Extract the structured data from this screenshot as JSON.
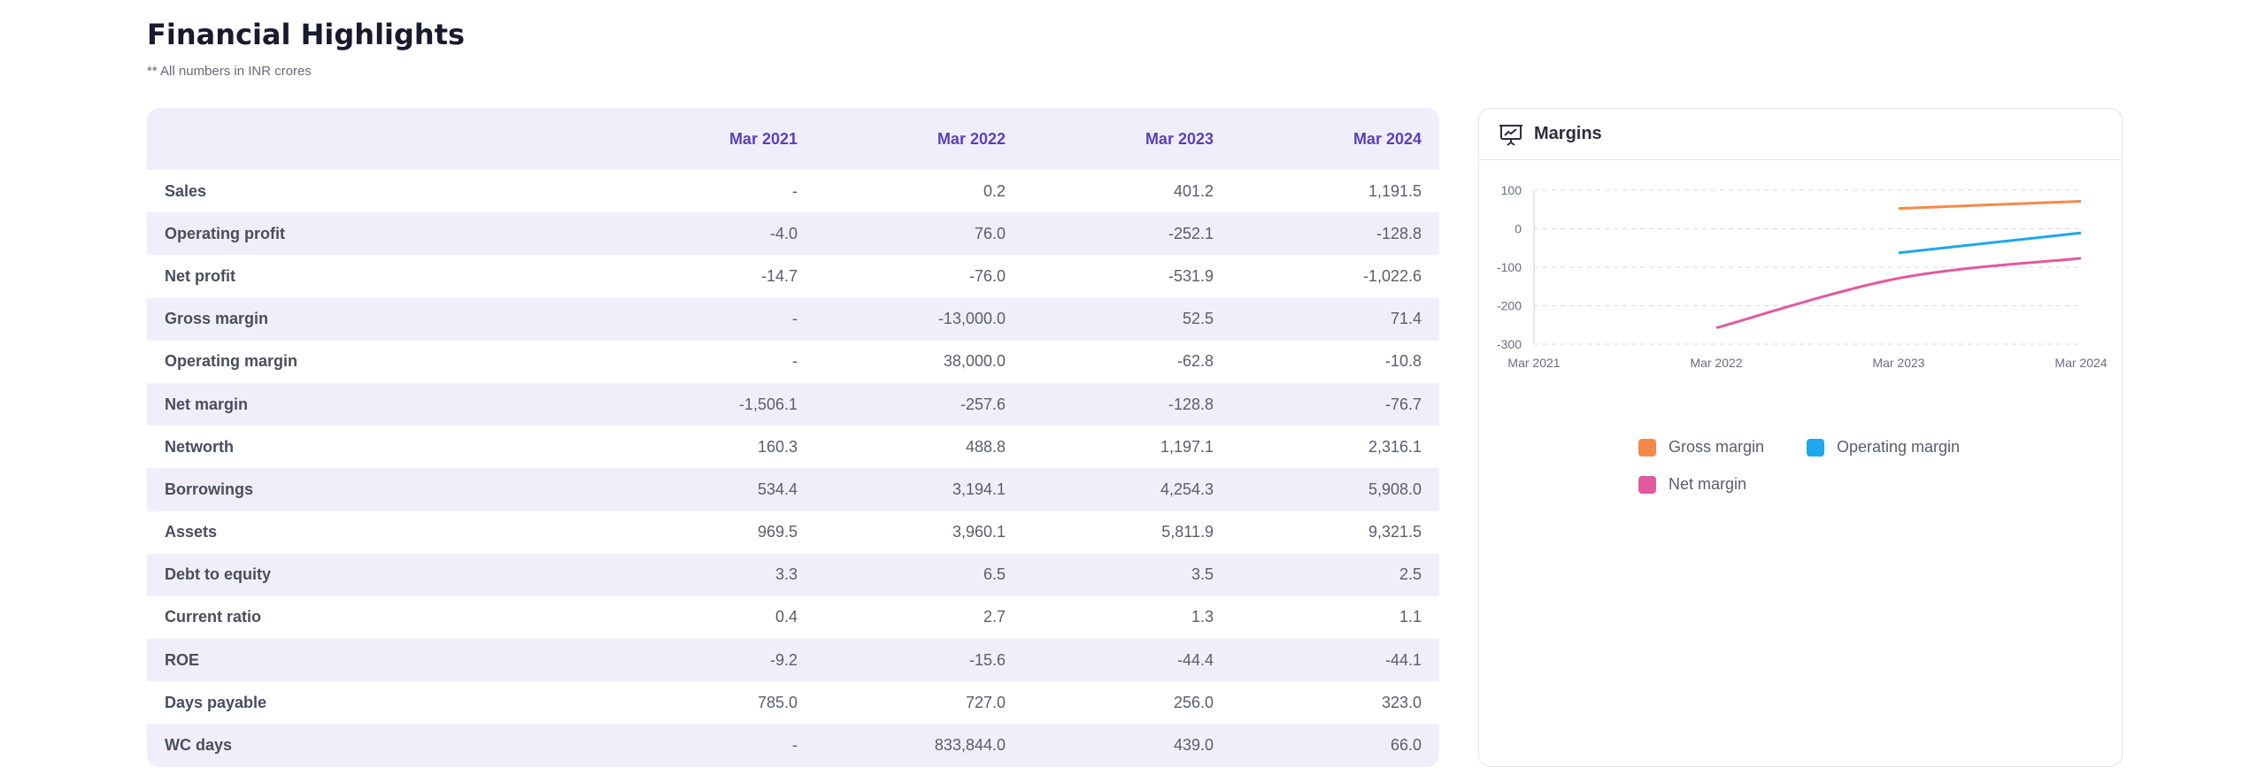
{
  "header": {
    "title": "Financial Highlights",
    "subtitle": "** All numbers in INR crores"
  },
  "table": {
    "columns": [
      "Mar 2021",
      "Mar 2022",
      "Mar 2023",
      "Mar 2024"
    ],
    "rows": [
      {
        "label": "Sales",
        "values": [
          "-",
          "0.2",
          "401.2",
          "1,191.5"
        ]
      },
      {
        "label": "Operating profit",
        "values": [
          "-4.0",
          "76.0",
          "-252.1",
          "-128.8"
        ]
      },
      {
        "label": "Net profit",
        "values": [
          "-14.7",
          "-76.0",
          "-531.9",
          "-1,022.6"
        ]
      },
      {
        "label": "Gross margin",
        "values": [
          "-",
          "-13,000.0",
          "52.5",
          "71.4"
        ]
      },
      {
        "label": "Operating margin",
        "values": [
          "-",
          "38,000.0",
          "-62.8",
          "-10.8"
        ]
      },
      {
        "label": "Net margin",
        "values": [
          "-1,506.1",
          "-257.6",
          "-128.8",
          "-76.7"
        ]
      },
      {
        "label": "Networth",
        "values": [
          "160.3",
          "488.8",
          "1,197.1",
          "2,316.1"
        ]
      },
      {
        "label": "Borrowings",
        "values": [
          "534.4",
          "3,194.1",
          "4,254.3",
          "5,908.0"
        ]
      },
      {
        "label": "Assets",
        "values": [
          "969.5",
          "3,960.1",
          "5,811.9",
          "9,321.5"
        ]
      },
      {
        "label": "Debt to equity",
        "values": [
          "3.3",
          "6.5",
          "3.5",
          "2.5"
        ]
      },
      {
        "label": "Current ratio",
        "values": [
          "0.4",
          "2.7",
          "1.3",
          "1.1"
        ]
      },
      {
        "label": "ROE",
        "values": [
          "-9.2",
          "-15.6",
          "-44.4",
          "-44.1"
        ]
      },
      {
        "label": "Days payable",
        "values": [
          "785.0",
          "727.0",
          "256.0",
          "323.0"
        ]
      },
      {
        "label": "WC days",
        "values": [
          "-",
          "833,844.0",
          "439.0",
          "66.0"
        ]
      }
    ]
  },
  "chart_panel": {
    "title": "Margins",
    "icon": "presentation-chart-icon"
  },
  "chart_data": {
    "type": "line",
    "x": [
      "Mar 2021",
      "Mar 2022",
      "Mar 2023",
      "Mar 2024"
    ],
    "y_ticks": [
      100,
      0,
      -100,
      -200,
      -300
    ],
    "ylim": [
      -300,
      100
    ],
    "grid": true,
    "legend_position": "bottom",
    "series": [
      {
        "name": "Gross margin",
        "color": "#f5894a",
        "values": [
          null,
          null,
          52.5,
          71.4
        ]
      },
      {
        "name": "Operating margin",
        "color": "#1ea7ec",
        "values": [
          null,
          null,
          -62.8,
          -10.8
        ]
      },
      {
        "name": "Net margin",
        "color": "#e05a9d",
        "values": [
          null,
          -257.6,
          -128.8,
          -76.7
        ]
      }
    ]
  }
}
